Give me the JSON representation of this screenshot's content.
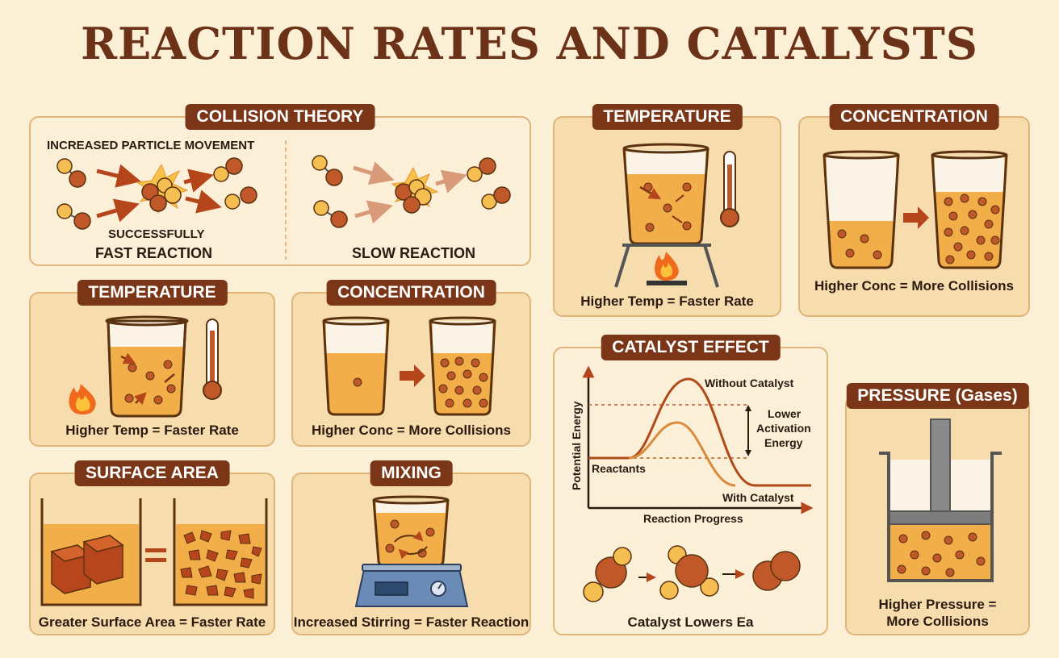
{
  "title": "REACTION RATES AND CATALYSTS",
  "collision": {
    "header": "COLLISION THEORY",
    "movement": "INCREASED PARTICLE MOVEMENT",
    "successfully": "SUCCESSFULLY",
    "fast": "FAST REACTION",
    "slow": "SLOW REACTION"
  },
  "temp_small": {
    "header": "TEMPERATURE",
    "caption": "Higher Temp = Faster Rate"
  },
  "conc_small": {
    "header": "CONCENTRATION",
    "caption": "Higher Conc = More Collisions"
  },
  "surface": {
    "header": "SURFACE AREA",
    "caption": "Greater Surface Area = Faster Rate"
  },
  "mixing": {
    "header": "MIXING",
    "caption": "Increased Stirring = Faster Reaction"
  },
  "temp_big": {
    "header": "TEMPERATURE",
    "caption": "Higher Temp = Faster Rate"
  },
  "conc_big": {
    "header": "CONCENTRATION",
    "caption": "Higher Conc = More Collisions"
  },
  "catalyst": {
    "header": "CATALYST EFFECT",
    "ylabel": "Potential Energy",
    "xlabel": "Reaction Progress",
    "without": "Without Catalyst",
    "with": "With Catalyst",
    "reactants": "Reactants",
    "lower1": "Lower",
    "lower2": "Activation",
    "lower3": "Energy",
    "caption": "Catalyst Lowers Ea"
  },
  "pressure": {
    "header": "PRESSURE (Gases)",
    "caption1": "Higher Pressure =",
    "caption2": "More Collisions"
  },
  "colors": {
    "brown": "#7a3617",
    "orange": "#f0b04e",
    "particle_dark": "#c0582a",
    "particle_light": "#f5be50"
  }
}
